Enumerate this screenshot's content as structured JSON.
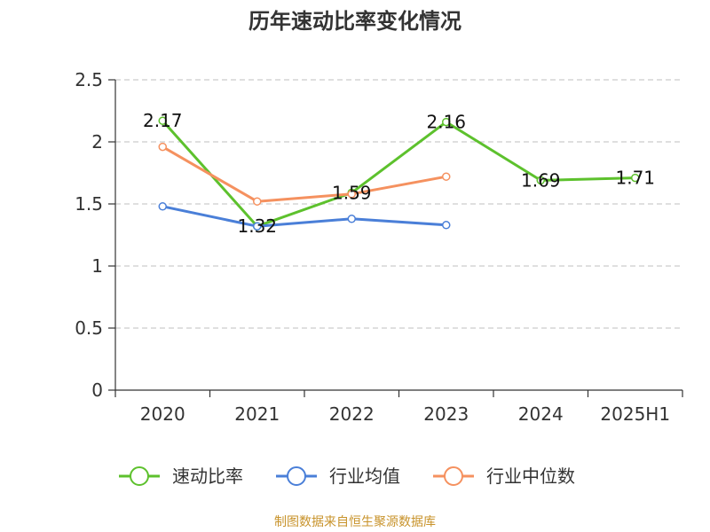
{
  "chart_data": {
    "type": "line",
    "title": "历年速动比率变化情况",
    "categories": [
      "2020",
      "2021",
      "2022",
      "2023",
      "2024",
      "2025H1"
    ],
    "ylim": [
      0,
      2.5
    ],
    "yticks": [
      "0",
      "0.5",
      "1",
      "1.5",
      "2",
      "2.5"
    ],
    "grid": true,
    "legend_position": "bottom",
    "series": [
      {
        "name": "速动比率",
        "values": [
          2.17,
          1.32,
          1.59,
          2.16,
          1.69,
          1.71
        ],
        "labels": [
          "2.17",
          "1.32",
          "1.59",
          "2.16",
          "1.69",
          "1.71"
        ],
        "color": "#5dc12d"
      },
      {
        "name": "行业均值",
        "values": [
          1.48,
          1.32,
          1.38,
          1.33,
          null,
          null
        ],
        "color": "#4a7fd8"
      },
      {
        "name": "行业中位数",
        "values": [
          1.96,
          1.52,
          1.58,
          1.72,
          null,
          null
        ],
        "color": "#f5915f"
      }
    ]
  },
  "source": "制图数据来自恒生聚源数据库"
}
